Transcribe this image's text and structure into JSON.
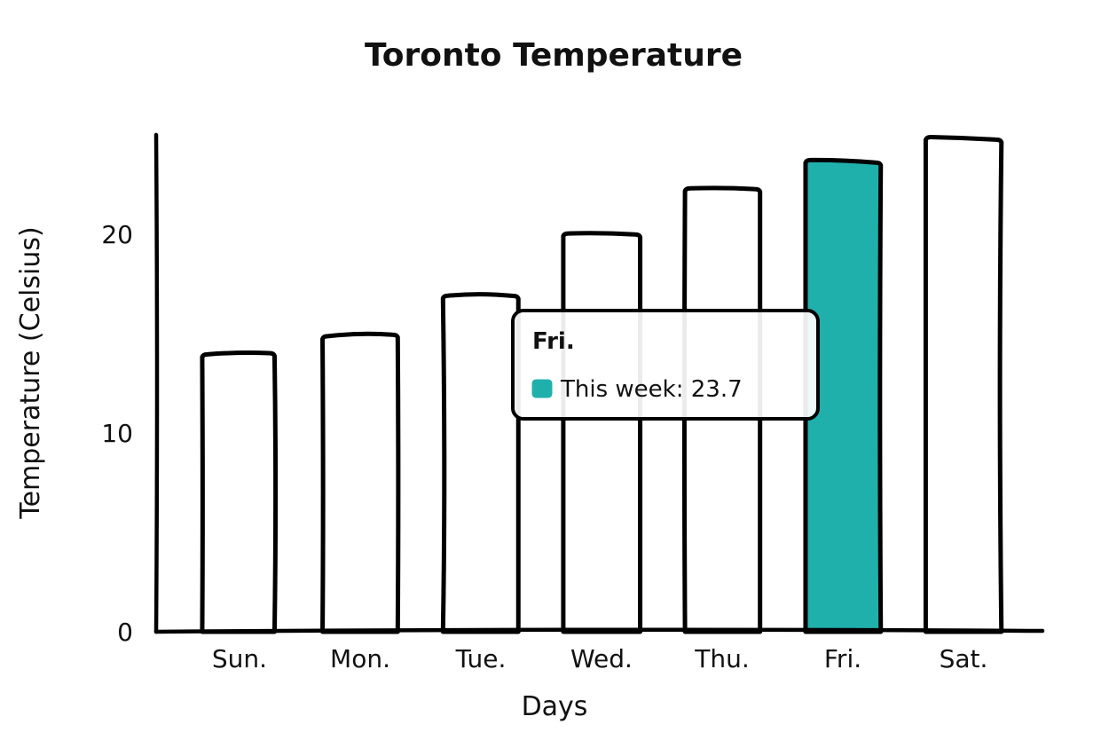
{
  "chart_data": {
    "type": "bar",
    "title": "Toronto Temperature",
    "xlabel": "Days",
    "ylabel": "Temperature (Celsius)",
    "categories": [
      "Sun.",
      "Mon.",
      "Tue.",
      "Wed.",
      "Thu.",
      "Fri.",
      "Sat."
    ],
    "series": [
      {
        "name": "This week",
        "values": [
          14.0,
          14.9,
          16.9,
          20.0,
          22.3,
          23.7,
          24.8
        ]
      }
    ],
    "ylim": [
      0,
      25
    ],
    "yticks": [
      "0",
      "10",
      "20"
    ],
    "highlight_index": 5,
    "colors": {
      "stroke": "#000000",
      "bar_fill": "#ffffff",
      "highlight_fill": "#20b0ac",
      "tooltip_bg": "#ffffff"
    },
    "tooltip": {
      "title": "Fri.",
      "series_label": "This week",
      "value_text": "23.7",
      "line_text": "This week: 23.7"
    }
  }
}
